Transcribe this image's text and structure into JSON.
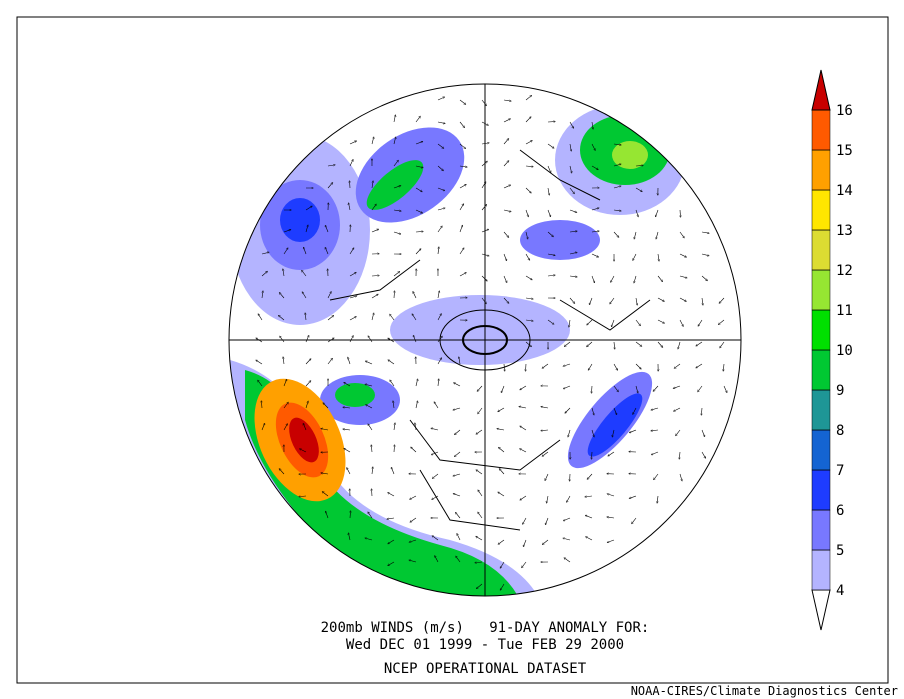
{
  "map": {
    "caption": [
      "200mb WINDS (m/s)   91-DAY ANOMALY FOR:",
      "Wed DEC 01 1999 - Tue FEB 29 2000",
      "NCEP OPERATIONAL DATASET"
    ],
    "credit": "NOAA-CIRES/Climate Diagnostics Center",
    "colorbar": {
      "levels": [
        4,
        5,
        6,
        7,
        8,
        9,
        10,
        11,
        12,
        13,
        14,
        15,
        16
      ],
      "colors": [
        "#ffffff",
        "#b4b4ff",
        "#7878ff",
        "#1e3cff",
        "#1464d2",
        "#1e9696",
        "#00c832",
        "#00e000",
        "#96e632",
        "#dcdc32",
        "#ffe600",
        "#ffa000",
        "#ff5a00",
        "#c80000"
      ]
    }
  }
}
